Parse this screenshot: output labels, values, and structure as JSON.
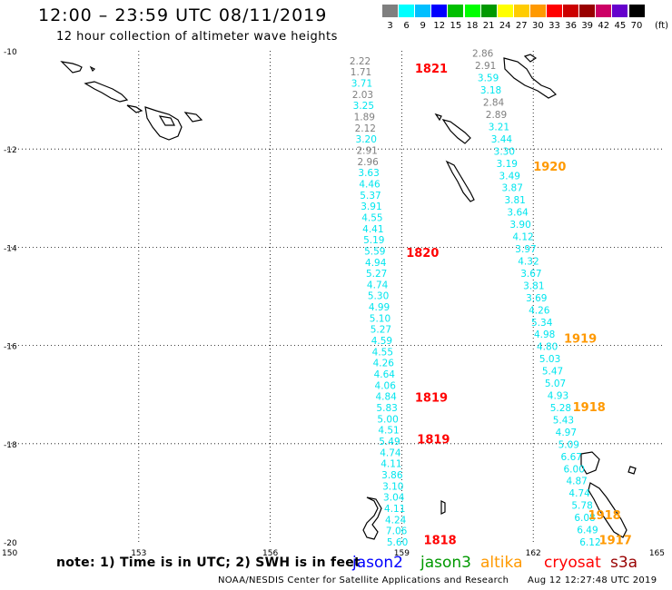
{
  "header": {
    "title": "12:00 – 23:59 UTC 08/11/2019",
    "subtitle": "12 hour collection of altimeter wave heights"
  },
  "color_scale": {
    "unit": "(ft)",
    "bins": [
      {
        "label": "3",
        "color": "#7f7f7f"
      },
      {
        "label": "6",
        "color": "#00ffff"
      },
      {
        "label": "9",
        "color": "#00bfff"
      },
      {
        "label": "12",
        "color": "#0000ff"
      },
      {
        "label": "15",
        "color": "#00bf00"
      },
      {
        "label": "18",
        "color": "#00ff00"
      },
      {
        "label": "21",
        "color": "#009900"
      },
      {
        "label": "24",
        "color": "#ffff00"
      },
      {
        "label": "27",
        "color": "#ffcc00"
      },
      {
        "label": "30",
        "color": "#ff9900"
      },
      {
        "label": "33",
        "color": "#ff0000"
      },
      {
        "label": "36",
        "color": "#cc0000"
      },
      {
        "label": "39",
        "color": "#990000"
      },
      {
        "label": "42",
        "color": "#cc0066"
      },
      {
        "label": "45",
        "color": "#6600cc"
      },
      {
        "label": "70",
        "color": "#000000"
      }
    ]
  },
  "axes": {
    "lat_labels": [
      "-10",
      "-12",
      "-14",
      "-16",
      "-18",
      "-20"
    ],
    "lon_labels": [
      "150",
      "153",
      "156",
      "159",
      "162",
      "165"
    ],
    "grid": true,
    "lon_range": [
      150,
      165
    ],
    "lat_range": [
      -10,
      -20
    ]
  },
  "tracks": [
    {
      "id": "jason3-west",
      "values": [
        "2.22",
        "1.71",
        "3.71",
        "2.03",
        "3.25",
        "1.89",
        "2.12",
        "3.20",
        "2.91",
        "2.96",
        "3.63",
        "4.46",
        "5.37",
        "3.91",
        "4.55",
        "4.41",
        "5.19",
        "5.59",
        "4.94",
        "5.27",
        "4.74",
        "5.30",
        "4.99",
        "5.10",
        "5.27",
        "4.59",
        "4.55",
        "4.26",
        "4.64",
        "4.06",
        "4.84",
        "5.83",
        "5.00",
        "4.51",
        "5.49",
        "4.74",
        "4.11",
        "3.86",
        "3.10",
        "3.04",
        "4.11",
        "4.24",
        "7.06",
        "5.60"
      ],
      "colors": [
        "gray",
        "gray",
        "cyan",
        "gray",
        "cyan",
        "gray",
        "gray",
        "cyan",
        "gray",
        "gray",
        "cyan",
        "cyan",
        "cyan",
        "cyan",
        "cyan",
        "cyan",
        "cyan",
        "cyan",
        "cyan",
        "cyan",
        "cyan",
        "cyan",
        "cyan",
        "cyan",
        "cyan",
        "cyan",
        "cyan",
        "cyan",
        "cyan",
        "cyan",
        "cyan",
        "cyan",
        "cyan",
        "cyan",
        "cyan",
        "cyan",
        "cyan",
        "cyan",
        "cyan",
        "cyan",
        "cyan",
        "cyan",
        "cyan",
        "cyan"
      ]
    },
    {
      "id": "altika-east",
      "values": [
        "2.86",
        "2.91",
        "3.59",
        "3.18",
        "2.84",
        "2.89",
        "3.21",
        "3.44",
        "3.30",
        "3.19",
        "3.49",
        "3.87",
        "3.81",
        "3.64",
        "3.90",
        "4.12",
        "3.97",
        "4.32",
        "3.67",
        "3.81",
        "3.69",
        "4.26",
        "5.34",
        "4.98",
        "4.80",
        "5.03",
        "5.47",
        "5.07",
        "4.93",
        "5.28",
        "5.43",
        "4.97",
        "5.09",
        "6.67",
        "6.00",
        "4.87",
        "4.74",
        "5.78",
        "6.08",
        "6.49",
        "6.12"
      ],
      "colors": [
        "gray",
        "gray",
        "cyan",
        "cyan",
        "gray",
        "gray",
        "cyan",
        "cyan",
        "cyan",
        "cyan",
        "cyan",
        "cyan",
        "cyan",
        "cyan",
        "cyan",
        "cyan",
        "cyan",
        "cyan",
        "cyan",
        "cyan",
        "cyan",
        "cyan",
        "cyan",
        "cyan",
        "cyan",
        "cyan",
        "cyan",
        "cyan",
        "cyan",
        "cyan",
        "cyan",
        "cyan",
        "cyan",
        "cyan",
        "cyan",
        "cyan",
        "cyan",
        "cyan",
        "cyan",
        "cyan",
        "cyan"
      ]
    }
  ],
  "time_labels": [
    {
      "text": "1821",
      "color": "#ff0000",
      "lon": 159.3,
      "lat": -10.35
    },
    {
      "text": "1820",
      "color": "#ff0000",
      "lon": 159.1,
      "lat": -14.1
    },
    {
      "text": "1819",
      "color": "#ff0000",
      "lon": 159.3,
      "lat": -17.05
    },
    {
      "text": "1819",
      "color": "#ff0000",
      "lon": 159.35,
      "lat": -17.9
    },
    {
      "text": "1818",
      "color": "#ff0000",
      "lon": 159.5,
      "lat": -19.95
    },
    {
      "text": "1920",
      "color": "#ff9900",
      "lon": 162.0,
      "lat": -12.35
    },
    {
      "text": "1919",
      "color": "#ff9900",
      "lon": 162.7,
      "lat": -15.85
    },
    {
      "text": "1918",
      "color": "#ff9900",
      "lon": 162.9,
      "lat": -17.25
    },
    {
      "text": "1918",
      "color": "#ff9900",
      "lon": 163.25,
      "lat": -19.45
    },
    {
      "text": "1917",
      "color": "#ff9900",
      "lon": 163.5,
      "lat": -19.95
    }
  ],
  "footer": {
    "note": "note:  1) Time is in UTC;  2) SWH is in feet",
    "satellites": [
      {
        "name": "jason2",
        "color": "#0000ff"
      },
      {
        "name": "jason3",
        "color": "#009900"
      },
      {
        "name": "altika",
        "color": "#ff9900"
      },
      {
        "name": "cryosat",
        "color": "#ff0000"
      },
      {
        "name": "s3a",
        "color": "#990000"
      }
    ],
    "credit": "NOAA/NESDIS Center for Satellite Applications and Research",
    "timestamp": "Aug 12 12:27:48 UTC 2019"
  }
}
